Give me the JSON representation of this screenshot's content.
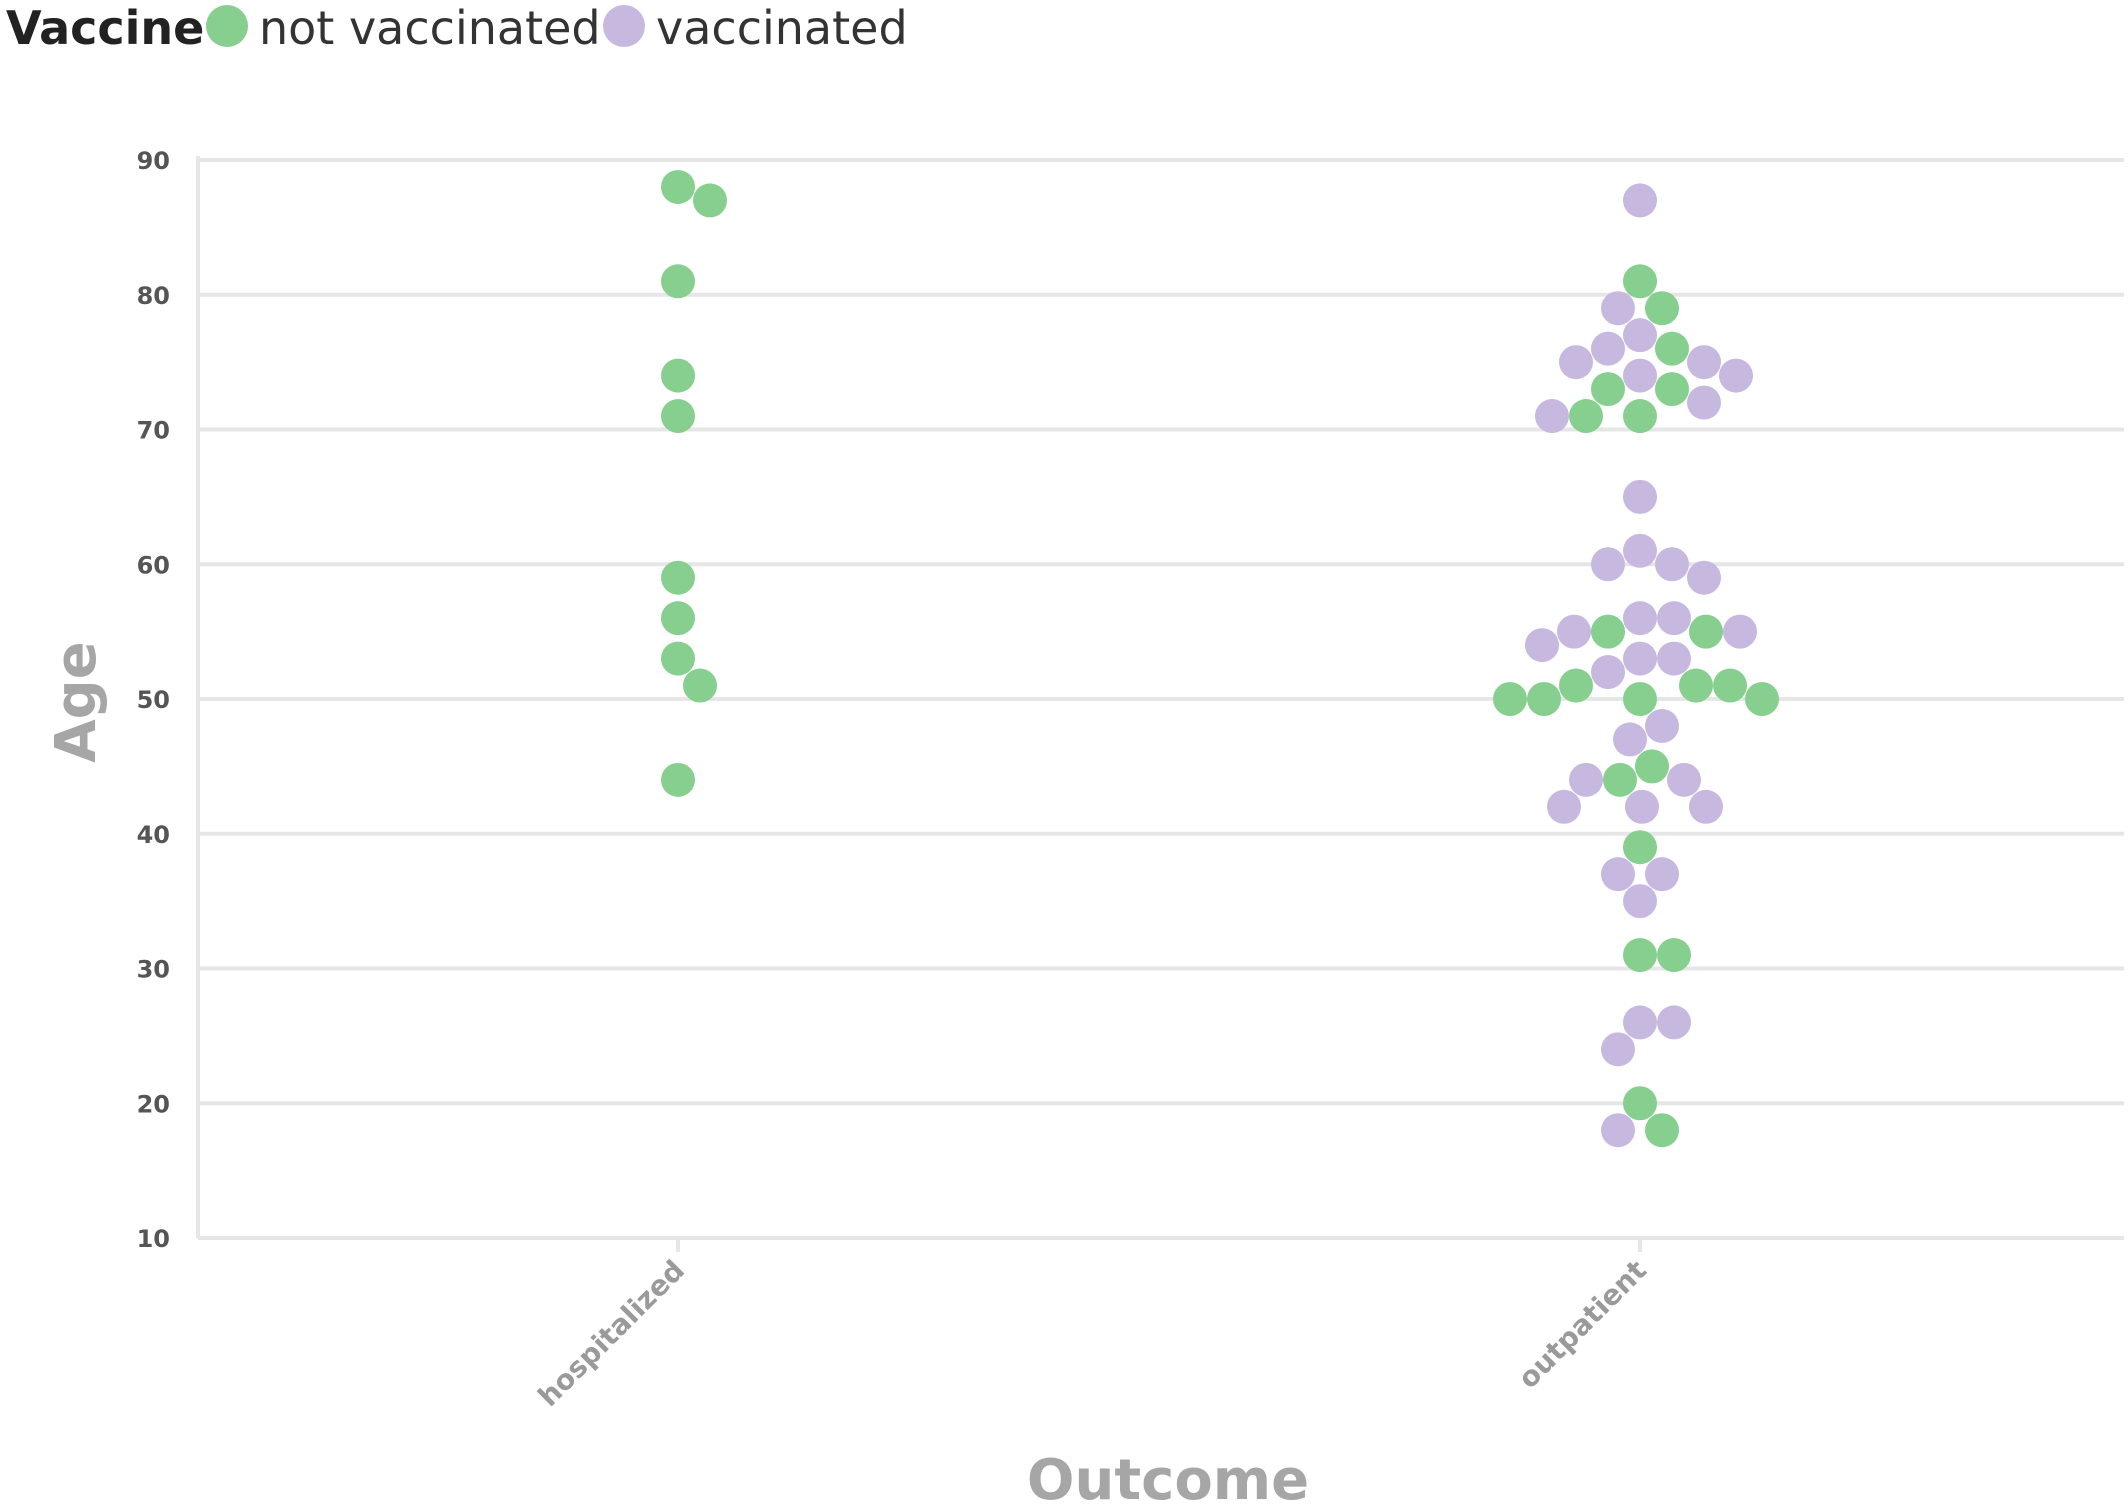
{
  "chart_data": {
    "type": "scatter",
    "legend": {
      "title": "Vaccine",
      "placement": "top-left",
      "entries": [
        {
          "label": "not vaccinated",
          "color": "#86cf8e"
        },
        {
          "label": "vaccinated",
          "color": "#c7b8e0"
        }
      ]
    },
    "xlabel": "Outcome",
    "ylabel": "Age",
    "categories": [
      "hospitalized",
      "outpatient"
    ],
    "ylim": [
      10,
      90
    ],
    "yticks": [
      "90",
      "80",
      "70",
      "60",
      "50",
      "40",
      "30",
      "20",
      "10"
    ],
    "grid": true,
    "series": [
      {
        "name": "not vaccinated",
        "color": "#86cf8e",
        "points": [
          {
            "x": "hospitalized",
            "y": 88
          },
          {
            "x": "hospitalized",
            "y": 87
          },
          {
            "x": "hospitalized",
            "y": 81
          },
          {
            "x": "hospitalized",
            "y": 74
          },
          {
            "x": "hospitalized",
            "y": 71
          },
          {
            "x": "hospitalized",
            "y": 59
          },
          {
            "x": "hospitalized",
            "y": 56
          },
          {
            "x": "hospitalized",
            "y": 53
          },
          {
            "x": "hospitalized",
            "y": 51
          },
          {
            "x": "hospitalized",
            "y": 44
          },
          {
            "x": "outpatient",
            "y": 81
          },
          {
            "x": "outpatient",
            "y": 79
          },
          {
            "x": "outpatient",
            "y": 76
          },
          {
            "x": "outpatient",
            "y": 73
          },
          {
            "x": "outpatient",
            "y": 73
          },
          {
            "x": "outpatient",
            "y": 71
          },
          {
            "x": "outpatient",
            "y": 71
          },
          {
            "x": "outpatient",
            "y": 55
          },
          {
            "x": "outpatient",
            "y": 55
          },
          {
            "x": "outpatient",
            "y": 51
          },
          {
            "x": "outpatient",
            "y": 51
          },
          {
            "x": "outpatient",
            "y": 51
          },
          {
            "x": "outpatient",
            "y": 50
          },
          {
            "x": "outpatient",
            "y": 50
          },
          {
            "x": "outpatient",
            "y": 50
          },
          {
            "x": "outpatient",
            "y": 50
          },
          {
            "x": "outpatient",
            "y": 45
          },
          {
            "x": "outpatient",
            "y": 44
          },
          {
            "x": "outpatient",
            "y": 39
          },
          {
            "x": "outpatient",
            "y": 31
          },
          {
            "x": "outpatient",
            "y": 31
          },
          {
            "x": "outpatient",
            "y": 20
          },
          {
            "x": "outpatient",
            "y": 18
          }
        ]
      },
      {
        "name": "vaccinated",
        "color": "#c7b8e0",
        "points": [
          {
            "x": "outpatient",
            "y": 87
          },
          {
            "x": "outpatient",
            "y": 79
          },
          {
            "x": "outpatient",
            "y": 77
          },
          {
            "x": "outpatient",
            "y": 76
          },
          {
            "x": "outpatient",
            "y": 75
          },
          {
            "x": "outpatient",
            "y": 75
          },
          {
            "x": "outpatient",
            "y": 74
          },
          {
            "x": "outpatient",
            "y": 74
          },
          {
            "x": "outpatient",
            "y": 72
          },
          {
            "x": "outpatient",
            "y": 71
          },
          {
            "x": "outpatient",
            "y": 65
          },
          {
            "x": "outpatient",
            "y": 61
          },
          {
            "x": "outpatient",
            "y": 60
          },
          {
            "x": "outpatient",
            "y": 60
          },
          {
            "x": "outpatient",
            "y": 59
          },
          {
            "x": "outpatient",
            "y": 56
          },
          {
            "x": "outpatient",
            "y": 56
          },
          {
            "x": "outpatient",
            "y": 55
          },
          {
            "x": "outpatient",
            "y": 55
          },
          {
            "x": "outpatient",
            "y": 54
          },
          {
            "x": "outpatient",
            "y": 53
          },
          {
            "x": "outpatient",
            "y": 53
          },
          {
            "x": "outpatient",
            "y": 52
          },
          {
            "x": "outpatient",
            "y": 48
          },
          {
            "x": "outpatient",
            "y": 47
          },
          {
            "x": "outpatient",
            "y": 44
          },
          {
            "x": "outpatient",
            "y": 44
          },
          {
            "x": "outpatient",
            "y": 42
          },
          {
            "x": "outpatient",
            "y": 42
          },
          {
            "x": "outpatient",
            "y": 42
          },
          {
            "x": "outpatient",
            "y": 37
          },
          {
            "x": "outpatient",
            "y": 37
          },
          {
            "x": "outpatient",
            "y": 35
          },
          {
            "x": "outpatient",
            "y": 26
          },
          {
            "x": "outpatient",
            "y": 26
          },
          {
            "x": "outpatient",
            "y": 24
          },
          {
            "x": "outpatient",
            "y": 18
          }
        ]
      }
    ]
  }
}
